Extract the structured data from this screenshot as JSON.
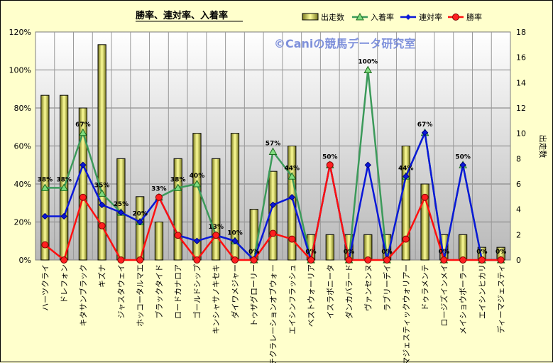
{
  "chart_data": {
    "type": "bar+line",
    "title": "勝率、連対率、入着率",
    "watermark": "©Caniの競馬データ研究室",
    "y_left": {
      "ticks": [
        "0%",
        "20%",
        "40%",
        "60%",
        "80%",
        "100%",
        "120%"
      ],
      "range": [
        0,
        120
      ]
    },
    "y_right": {
      "label": "出走数",
      "ticks": [
        "0",
        "2",
        "4",
        "6",
        "8",
        "10",
        "12",
        "14",
        "16",
        "18"
      ],
      "range": [
        0,
        18
      ]
    },
    "legend": {
      "position": "top-right",
      "items": [
        "出走数",
        "入着率",
        "連対率",
        "勝率"
      ]
    },
    "categories": [
      "ハーツクライ",
      "ドレフォン",
      "キタサンブラック",
      "キズナ",
      "ジャスタウェイ",
      "ホッコータルマエ",
      "ブラックタイド",
      "ロードカナロア",
      "ゴールドシップ",
      "キンシャサノキセキ",
      "ダイワメジャー",
      "トゥザグローリー",
      "テクラレーションオブウォー",
      "エイシンフラッシュ",
      "ベストウォーリア",
      "イスラボニータ",
      "ダンカバラード",
      "ヴァンセンヌ",
      "ラブリーデイ",
      "マジェスティックウォリアー",
      "ドゥラメンテ",
      "ロージズインメイ",
      "メイショウボーラー",
      "エイシンヒカリ",
      "ディーマジェスティ"
    ],
    "series": [
      {
        "name": "出走数",
        "type": "bar",
        "axis": "right",
        "color": "#e8e88a",
        "values": [
          13,
          13,
          12,
          17,
          8,
          5,
          3,
          8,
          10,
          8,
          10,
          4,
          7,
          9,
          2,
          2,
          2,
          2,
          2,
          9,
          6,
          2,
          2,
          1,
          1
        ]
      },
      {
        "name": "入着率",
        "type": "line",
        "axis": "left",
        "color": "#3c9a5a",
        "values": [
          38,
          38,
          67,
          35,
          25,
          20,
          33,
          38,
          40,
          13,
          10,
          0,
          57,
          44,
          0,
          50,
          0,
          100,
          0,
          44,
          67,
          0,
          50,
          0,
          0
        ]
      },
      {
        "name": "連対率",
        "type": "line",
        "axis": "left",
        "color": "#0a18d8",
        "values": [
          23,
          23,
          50,
          29,
          25,
          20,
          33,
          13,
          10,
          13,
          10,
          0,
          29,
          33,
          0,
          50,
          0,
          50,
          0,
          44,
          67,
          0,
          50,
          0,
          0
        ]
      },
      {
        "name": "勝率",
        "type": "line",
        "axis": "left",
        "color": "#ff1010",
        "values": [
          8,
          0,
          33,
          18,
          0,
          0,
          33,
          13,
          0,
          13,
          0,
          0,
          14,
          11,
          0,
          50,
          0,
          0,
          0,
          11,
          33,
          0,
          0,
          0,
          0
        ]
      }
    ],
    "data_labels": [
      "38%",
      "38%",
      "67%",
      "35%",
      "25%",
      "20%",
      "33%",
      "38%",
      "40%",
      "13%",
      "10%",
      "0%",
      "57%",
      "44%",
      "0%",
      "50%",
      "0%",
      "100%",
      "0%",
      "44%",
      "67%",
      "0%",
      "50%",
      "0%",
      "0%"
    ]
  }
}
